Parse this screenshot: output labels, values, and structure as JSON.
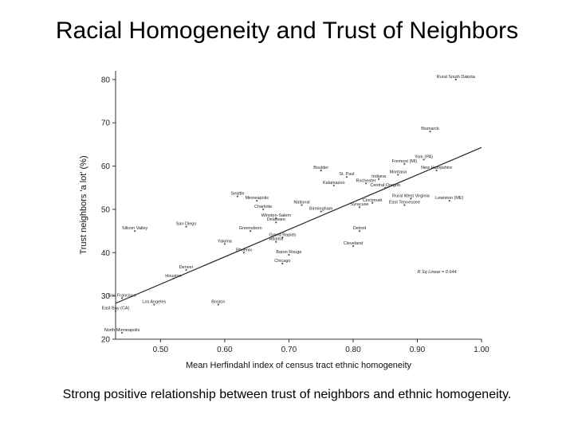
{
  "slide": {
    "title": "Racial Homogeneity and Trust of Neighbors",
    "caption": "Strong positive relationship between trust of neighbors and ethnic homogeneity."
  },
  "chart_data": {
    "type": "scatter",
    "title": "",
    "xlabel": "Mean Herfindahl index of census tract ethnic homogeneity",
    "ylabel": "Trust neighbors 'a lot' (%)",
    "xlim": [
      0.43,
      1.0
    ],
    "ylim": [
      20,
      82
    ],
    "xticks": [
      0.5,
      0.6,
      0.7,
      0.8,
      0.9,
      1.0
    ],
    "xtick_labels": [
      "0.50",
      "0.60",
      "0.70",
      "0.80",
      "0.90",
      "1.00"
    ],
    "yticks": [
      20,
      30,
      40,
      50,
      60,
      70,
      80
    ],
    "ytick_labels": [
      "20",
      "30",
      "40",
      "50",
      "60",
      "70",
      "80"
    ],
    "grid": false,
    "points": [
      {
        "label": "Rural South Dakota",
        "x": 0.96,
        "y": 80.0
      },
      {
        "label": "Bismarck",
        "x": 0.92,
        "y": 68.0
      },
      {
        "label": "York (PA)",
        "x": 0.91,
        "y": 61.5
      },
      {
        "label": "Fremont (MI)",
        "x": 0.88,
        "y": 60.5
      },
      {
        "label": "New Hampshire",
        "x": 0.93,
        "y": 59.0
      },
      {
        "label": "Boulder",
        "x": 0.75,
        "y": 59.0
      },
      {
        "label": "Montana",
        "x": 0.87,
        "y": 58.0
      },
      {
        "label": "St. Paul",
        "x": 0.79,
        "y": 57.5
      },
      {
        "label": "Indiana",
        "x": 0.84,
        "y": 57.0
      },
      {
        "label": "Rochester",
        "x": 0.82,
        "y": 56.0
      },
      {
        "label": "Kalamazoo",
        "x": 0.77,
        "y": 55.5
      },
      {
        "label": "Central Oregon",
        "x": 0.85,
        "y": 55.0
      },
      {
        "label": "Seattle",
        "x": 0.62,
        "y": 53.0
      },
      {
        "label": "Rural West Virginia",
        "x": 0.89,
        "y": 52.5
      },
      {
        "label": "Lewiston (ME)",
        "x": 0.95,
        "y": 52.0
      },
      {
        "label": "Minneapolis",
        "x": 0.65,
        "y": 52.0
      },
      {
        "label": "Cincinnati",
        "x": 0.83,
        "y": 51.5
      },
      {
        "label": "East Tennessee",
        "x": 0.88,
        "y": 51.0
      },
      {
        "label": "National",
        "x": 0.72,
        "y": 51.0
      },
      {
        "label": "Syracuse",
        "x": 0.81,
        "y": 50.5
      },
      {
        "label": "Charlotte",
        "x": 0.66,
        "y": 50.0
      },
      {
        "label": "Birmingham",
        "x": 0.75,
        "y": 49.5
      },
      {
        "label": "Winston-Salem",
        "x": 0.68,
        "y": 48.0
      },
      {
        "label": "Delaware",
        "x": 0.68,
        "y": 47.0
      },
      {
        "label": "San Diego",
        "x": 0.54,
        "y": 46.0
      },
      {
        "label": "Silicon Valley",
        "x": 0.46,
        "y": 45.0
      },
      {
        "label": "Detroit",
        "x": 0.81,
        "y": 45.0
      },
      {
        "label": "Greensboro",
        "x": 0.64,
        "y": 45.0
      },
      {
        "label": "Grand Rapids",
        "x": 0.69,
        "y": 43.5
      },
      {
        "label": "Atlanta",
        "x": 0.68,
        "y": 42.5
      },
      {
        "label": "Yakima",
        "x": 0.6,
        "y": 42.0
      },
      {
        "label": "Cleveland",
        "x": 0.8,
        "y": 41.5
      },
      {
        "label": "Phoenix",
        "x": 0.63,
        "y": 40.0
      },
      {
        "label": "Baton Rouge",
        "x": 0.7,
        "y": 39.5
      },
      {
        "label": "Chicago",
        "x": 0.69,
        "y": 37.5
      },
      {
        "label": "Denver",
        "x": 0.54,
        "y": 36.0
      },
      {
        "label": "Houston",
        "x": 0.52,
        "y": 34.0
      },
      {
        "label": "San Francisco",
        "x": 0.44,
        "y": 29.5
      },
      {
        "label": "Los Angeles",
        "x": 0.49,
        "y": 28.0
      },
      {
        "label": "Boston",
        "x": 0.59,
        "y": 28.0
      },
      {
        "label": "East Bay (CA)",
        "x": 0.43,
        "y": 26.5
      },
      {
        "label": "North Minneapolis",
        "x": 0.44,
        "y": 21.5
      }
    ],
    "fit_line": {
      "x": [
        0.43,
        1.0
      ],
      "y": [
        28.3,
        64.3
      ]
    },
    "annotation": "R Sq Linear = 0.644"
  }
}
